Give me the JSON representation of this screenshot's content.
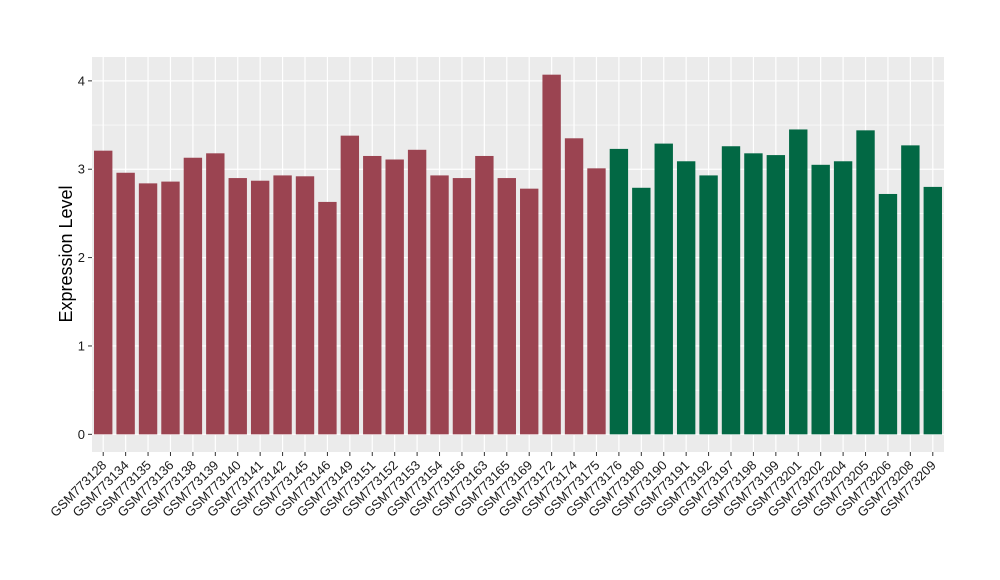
{
  "chart_data": {
    "type": "bar",
    "title": "",
    "xlabel": "",
    "ylabel": "Expression Level",
    "ylim": [
      -0.2,
      4.27
    ],
    "yticks": [
      0,
      1,
      2,
      3,
      4
    ],
    "grid": true,
    "legend": "none",
    "background_color": "#ebebeb",
    "grid_color": "#ffffff",
    "categories": [
      "GSM773128",
      "GSM773134",
      "GSM773135",
      "GSM773136",
      "GSM773138",
      "GSM773139",
      "GSM773140",
      "GSM773141",
      "GSM773142",
      "GSM773145",
      "GSM773146",
      "GSM773149",
      "GSM773151",
      "GSM773152",
      "GSM773153",
      "GSM773154",
      "GSM773156",
      "GSM773163",
      "GSM773165",
      "GSM773169",
      "GSM773172",
      "GSM773174",
      "GSM773175",
      "GSM773176",
      "GSM773180",
      "GSM773190",
      "GSM773191",
      "GSM773192",
      "GSM773197",
      "GSM773198",
      "GSM773199",
      "GSM773201",
      "GSM773202",
      "GSM773204",
      "GSM773205",
      "GSM773206",
      "GSM773208",
      "GSM773209"
    ],
    "values": [
      3.21,
      2.96,
      2.84,
      2.86,
      3.13,
      3.18,
      2.9,
      2.87,
      2.93,
      2.92,
      2.63,
      3.38,
      3.15,
      3.11,
      3.22,
      2.93,
      2.9,
      3.15,
      2.9,
      2.78,
      4.07,
      3.35,
      3.01,
      3.23,
      2.79,
      3.29,
      3.09,
      2.93,
      3.26,
      3.18,
      3.16,
      3.45,
      3.05,
      3.09,
      3.44,
      2.72,
      3.27,
      2.8
    ],
    "groups": [
      "red",
      "red",
      "red",
      "red",
      "red",
      "red",
      "red",
      "red",
      "red",
      "red",
      "red",
      "red",
      "red",
      "red",
      "red",
      "red",
      "red",
      "red",
      "red",
      "red",
      "red",
      "red",
      "red",
      "green",
      "green",
      "green",
      "green",
      "green",
      "green",
      "green",
      "green",
      "green",
      "green",
      "green",
      "green",
      "green",
      "green",
      "green"
    ],
    "group_colors": {
      "red": "#9b4451",
      "green": "#026844"
    }
  }
}
